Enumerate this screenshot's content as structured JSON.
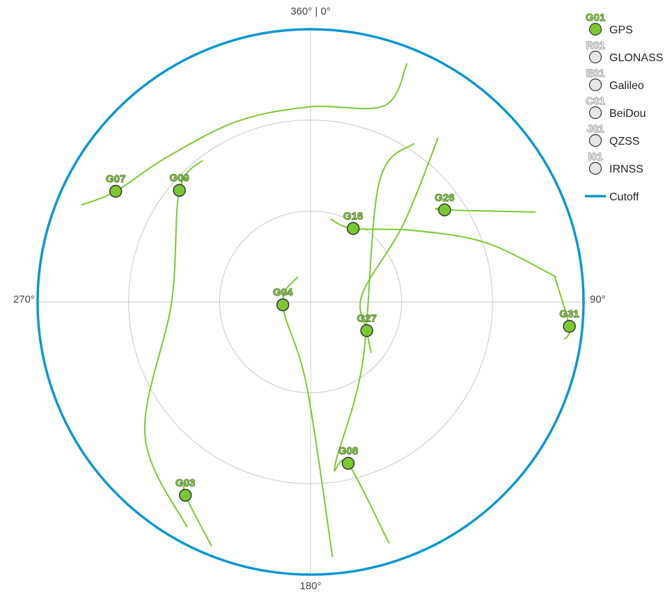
{
  "chart_data": {
    "type": "scatter",
    "title": "",
    "projection": "polar sky plot (azimuth clockwise from north, radius = 90 - elevation)",
    "colors": {
      "gps": "#7dc832",
      "inactive": "#e6e6e6",
      "cutoff": "#0a96d2",
      "grid": "#c8c8c8",
      "outline": "#333333"
    },
    "axis": {
      "azimuth_labels": {
        "north": "360° | 0°",
        "east": "90°",
        "south": "180°",
        "west": "270°"
      },
      "elevation_rings": [
        0,
        30,
        60
      ],
      "elevation_range": [
        0,
        90
      ],
      "cutoff_elevation": 0
    },
    "legend": [
      {
        "code": "G01",
        "name": "GPS",
        "active": true
      },
      {
        "code": "R01",
        "name": "GLONASS",
        "active": false
      },
      {
        "code": "E01",
        "name": "Galileo",
        "active": false
      },
      {
        "code": "C01",
        "name": "BeiDou",
        "active": false
      },
      {
        "code": "J01",
        "name": "QZSS",
        "active": false
      },
      {
        "code": "I01",
        "name": "IRNSS",
        "active": false
      },
      {
        "code": "",
        "name": "Cutoff",
        "active": true,
        "line": true
      }
    ],
    "satellites": [
      {
        "id": "G07",
        "system": "GPS",
        "azimuth": 299.6,
        "elevation": 16.1,
        "track": [
          [
            292.9,
            7.9
          ],
          [
            299.6,
            16.1
          ],
          [
            315.2,
            22.7
          ],
          [
            338.1,
            25.7
          ],
          [
            0.0,
            25.6
          ],
          [
            20.6,
            20.8
          ],
          [
            22.0,
            5.1
          ]
        ]
      },
      {
        "id": "G09",
        "system": "GPS",
        "azimuth": 310.4,
        "elevation": 33.2,
        "track": [
          [
            322.6,
            31.2
          ],
          [
            310.4,
            33.2
          ],
          [
            270.0,
            44.2
          ],
          [
            231.3,
            20.0
          ],
          [
            208.7,
            5.2
          ]
        ]
      },
      {
        "id": "G04",
        "system": "GPS",
        "azimuth": 264.0,
        "elevation": 80.8,
        "track": [
          [
            332.9,
            80.7
          ],
          [
            264.0,
            80.8
          ],
          [
            182.6,
            62.2
          ],
          [
            175.1,
            5.5
          ]
        ]
      },
      {
        "id": "G16",
        "system": "GPS",
        "azimuth": 30.1,
        "elevation": 62.0,
        "track": [
          [
            13.6,
            61.9
          ],
          [
            30.1,
            62.0
          ],
          [
            55.5,
            48.4
          ],
          [
            71.4,
            28.9
          ],
          [
            84.2,
            8.6
          ]
        ]
      },
      {
        "id": "G26",
        "system": "GPS",
        "azimuth": 55.5,
        "elevation": 36.4,
        "track": [
          [
            53.6,
            37.7
          ],
          [
            55.5,
            36.4
          ],
          [
            68.2,
            10.1
          ]
        ]
      },
      {
        "id": "G27",
        "system": "GPS",
        "azimuth": 117.1,
        "elevation": 69.2,
        "track": [
          [
            130.0,
            63.9
          ],
          [
            117.1,
            69.2
          ],
          [
            81.6,
            72.8
          ],
          [
            50.0,
            50.0
          ],
          [
            37.8,
            21.4
          ]
        ]
      },
      {
        "id": "G31",
        "system": "GPS",
        "azimuth": 95.4,
        "elevation": 4.3,
        "track": [
          [
            84.0,
            9.1
          ],
          [
            95.4,
            4.3
          ],
          [
            98.4,
            5.3
          ]
        ]
      },
      {
        "id": "G08",
        "system": "GPS",
        "azimuth": 166.9,
        "elevation": 35.3,
        "track": [
          [
            33.1,
            27.5
          ],
          [
            30.0,
            45.0
          ],
          [
            140.0,
            63.4
          ],
          [
            171.6,
            35.2
          ],
          [
            166.9,
            35.3
          ],
          [
            162.0,
            6.2
          ]
        ]
      },
      {
        "id": "G03",
        "system": "GPS",
        "azimuth": 212.9,
        "elevation": 14.0,
        "track": [
          [
            214.5,
            17.5
          ],
          [
            212.9,
            14.0
          ],
          [
            202.0,
            3.0
          ]
        ]
      }
    ]
  }
}
